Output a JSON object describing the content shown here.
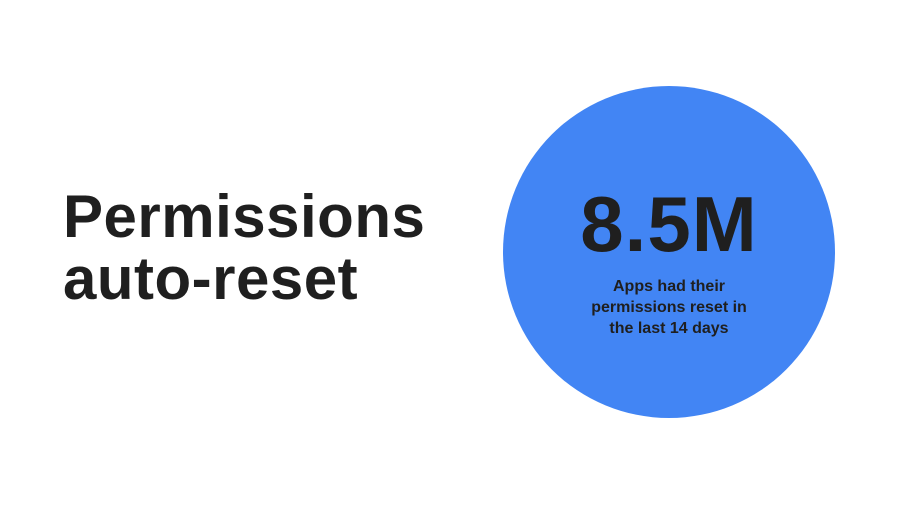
{
  "headline": {
    "line1": "Permissions",
    "line2": "auto-reset"
  },
  "stat": {
    "value": "8.5M",
    "caption_line1": "Apps had their",
    "caption_line2": "permissions reset in",
    "caption_line3": "the last 14 days"
  },
  "colors": {
    "background": "#ffffff",
    "circle": "#4285f4",
    "text": "#1f1f1f"
  }
}
